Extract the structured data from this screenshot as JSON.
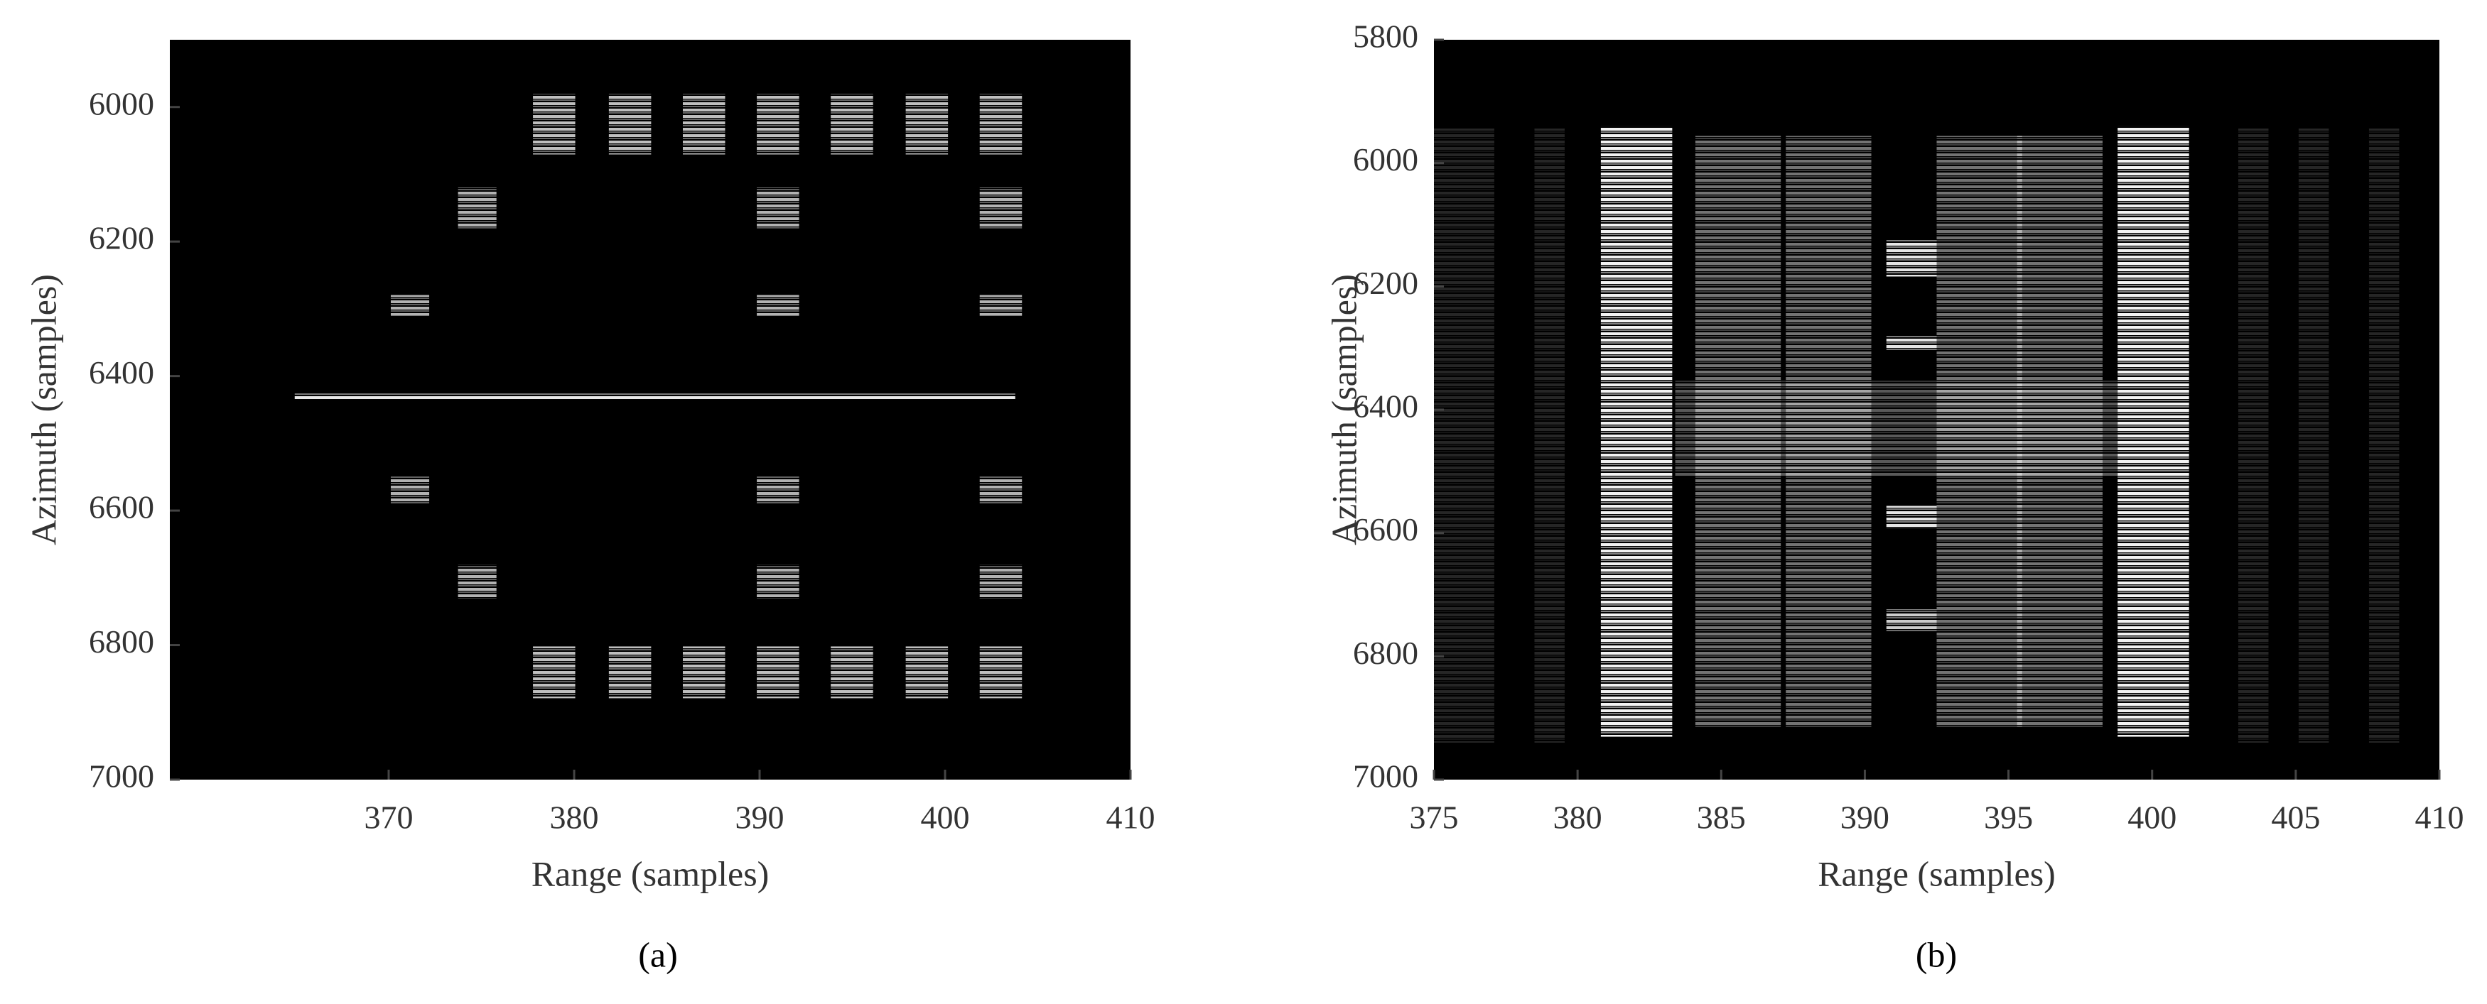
{
  "chart_data": [
    {
      "type": "image",
      "caption": "(a)",
      "xlabel": "Range (samples)",
      "ylabel": "Azimuth (samples)",
      "xlim": [
        358.2,
        410
      ],
      "xticks": [
        370,
        380,
        390,
        400,
        410
      ],
      "ylim": [
        5900,
        7000
      ],
      "yticks": [
        6000,
        6200,
        6400,
        6600,
        6800,
        7000
      ],
      "y_reversed": true
    },
    {
      "type": "image",
      "caption": "(b)",
      "xlabel": "Range (samples)",
      "ylabel": "Azimuth (samples)",
      "xlim": [
        375,
        410
      ],
      "xticks": [
        375,
        380,
        385,
        390,
        395,
        400,
        405,
        410
      ],
      "ylim": [
        5800,
        7000
      ],
      "yticks": [
        5800,
        6000,
        6200,
        6400,
        6600,
        6800,
        7000
      ],
      "y_reversed": true
    }
  ]
}
